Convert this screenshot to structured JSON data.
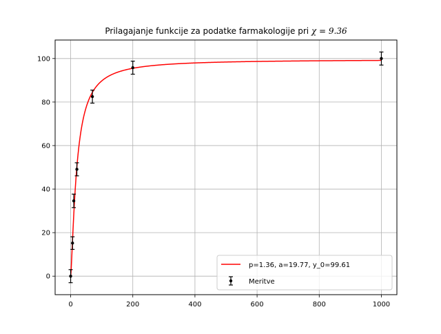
{
  "chart_data": {
    "type": "scatter",
    "title": "Prilagajanje funkcije za podatke farmakologije pri",
    "title_math": "χ = 9.36",
    "xlabel": "",
    "ylabel": "",
    "xlim": [
      -50,
      1050
    ],
    "ylim": [
      -8.5,
      108.5
    ],
    "xticks": [
      0,
      200,
      400,
      600,
      800,
      1000
    ],
    "yticks": [
      0,
      20,
      40,
      60,
      80,
      100
    ],
    "grid": true,
    "legend_position": "lower right",
    "series": [
      {
        "name": "p=1.36, a=19.77, y_0=99.61",
        "kind": "line",
        "color": "#ff0000",
        "function": "y_0 * x^p / (x^p + a^p)",
        "params": {
          "p": 1.36,
          "a": 19.77,
          "y_0": 99.61
        },
        "x_range": [
          0,
          1000
        ]
      },
      {
        "name": "Meritve",
        "kind": "errorbar",
        "color": "#000000",
        "x": [
          0,
          6,
          10,
          20,
          70,
          200,
          1000
        ],
        "y": [
          0,
          15.2,
          34.6,
          49.1,
          82.5,
          95.8,
          100.0
        ],
        "yerr": [
          3.0,
          2.9,
          3.1,
          3.0,
          3.0,
          3.0,
          3.0
        ]
      }
    ]
  }
}
